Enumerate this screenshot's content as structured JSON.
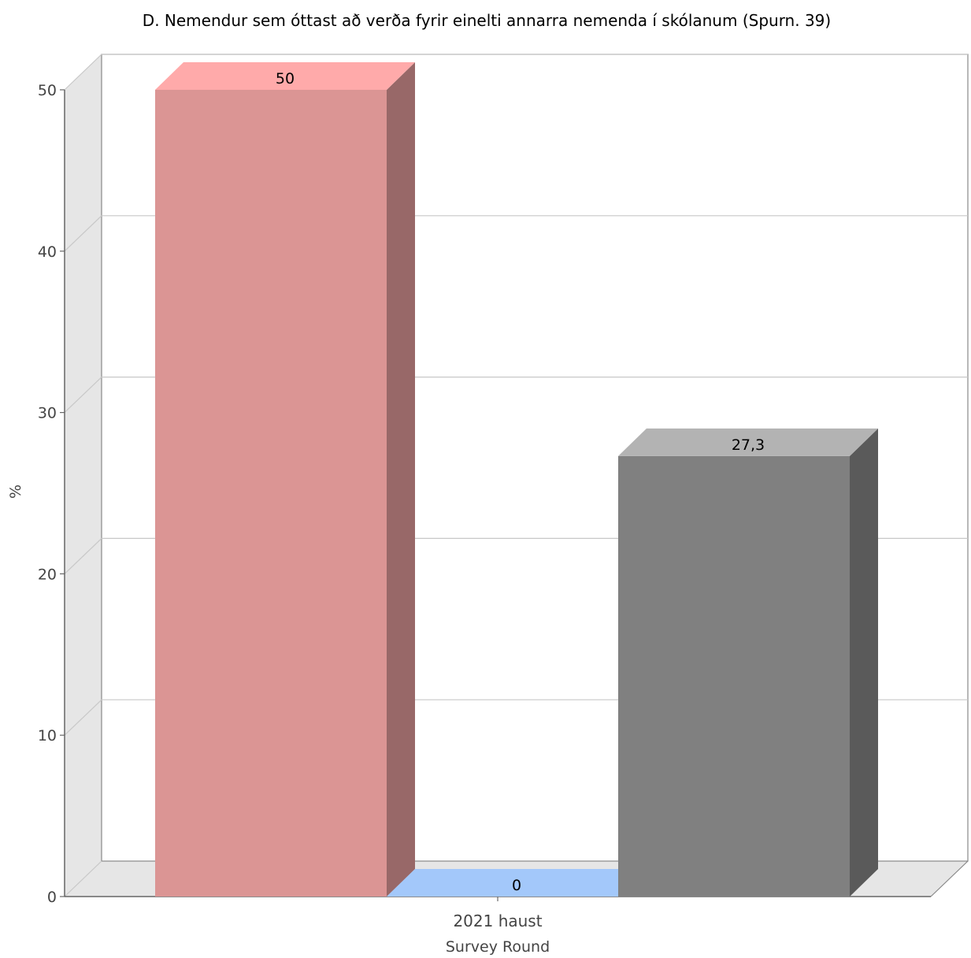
{
  "chart_data": {
    "type": "bar",
    "title": "D. Nemendur sem óttast að verða fyrir einelti annarra nemenda í skólanum (Spurn. 39)",
    "xlabel": "Survey Round",
    "ylabel": "%",
    "categories": [
      "2021 haust"
    ],
    "series": [
      {
        "values": [
          50
        ],
        "color": "#db9594",
        "top_color": "#ffaaaa",
        "side_color": "#986868",
        "label": "50"
      },
      {
        "values": [
          0
        ],
        "color": "#a3c8fa",
        "top_color": "#a3c8fa",
        "side_color": "#7aa0d2",
        "label": "0"
      },
      {
        "values": [
          27.3
        ],
        "color": "#808080",
        "top_color": "#b3b3b3",
        "side_color": "#5a5a5a",
        "label": "27,3"
      }
    ],
    "ylim": [
      0,
      50
    ],
    "yticks": [
      "0",
      "10",
      "20",
      "30",
      "40",
      "50"
    ],
    "grid": true,
    "style": "3d"
  }
}
